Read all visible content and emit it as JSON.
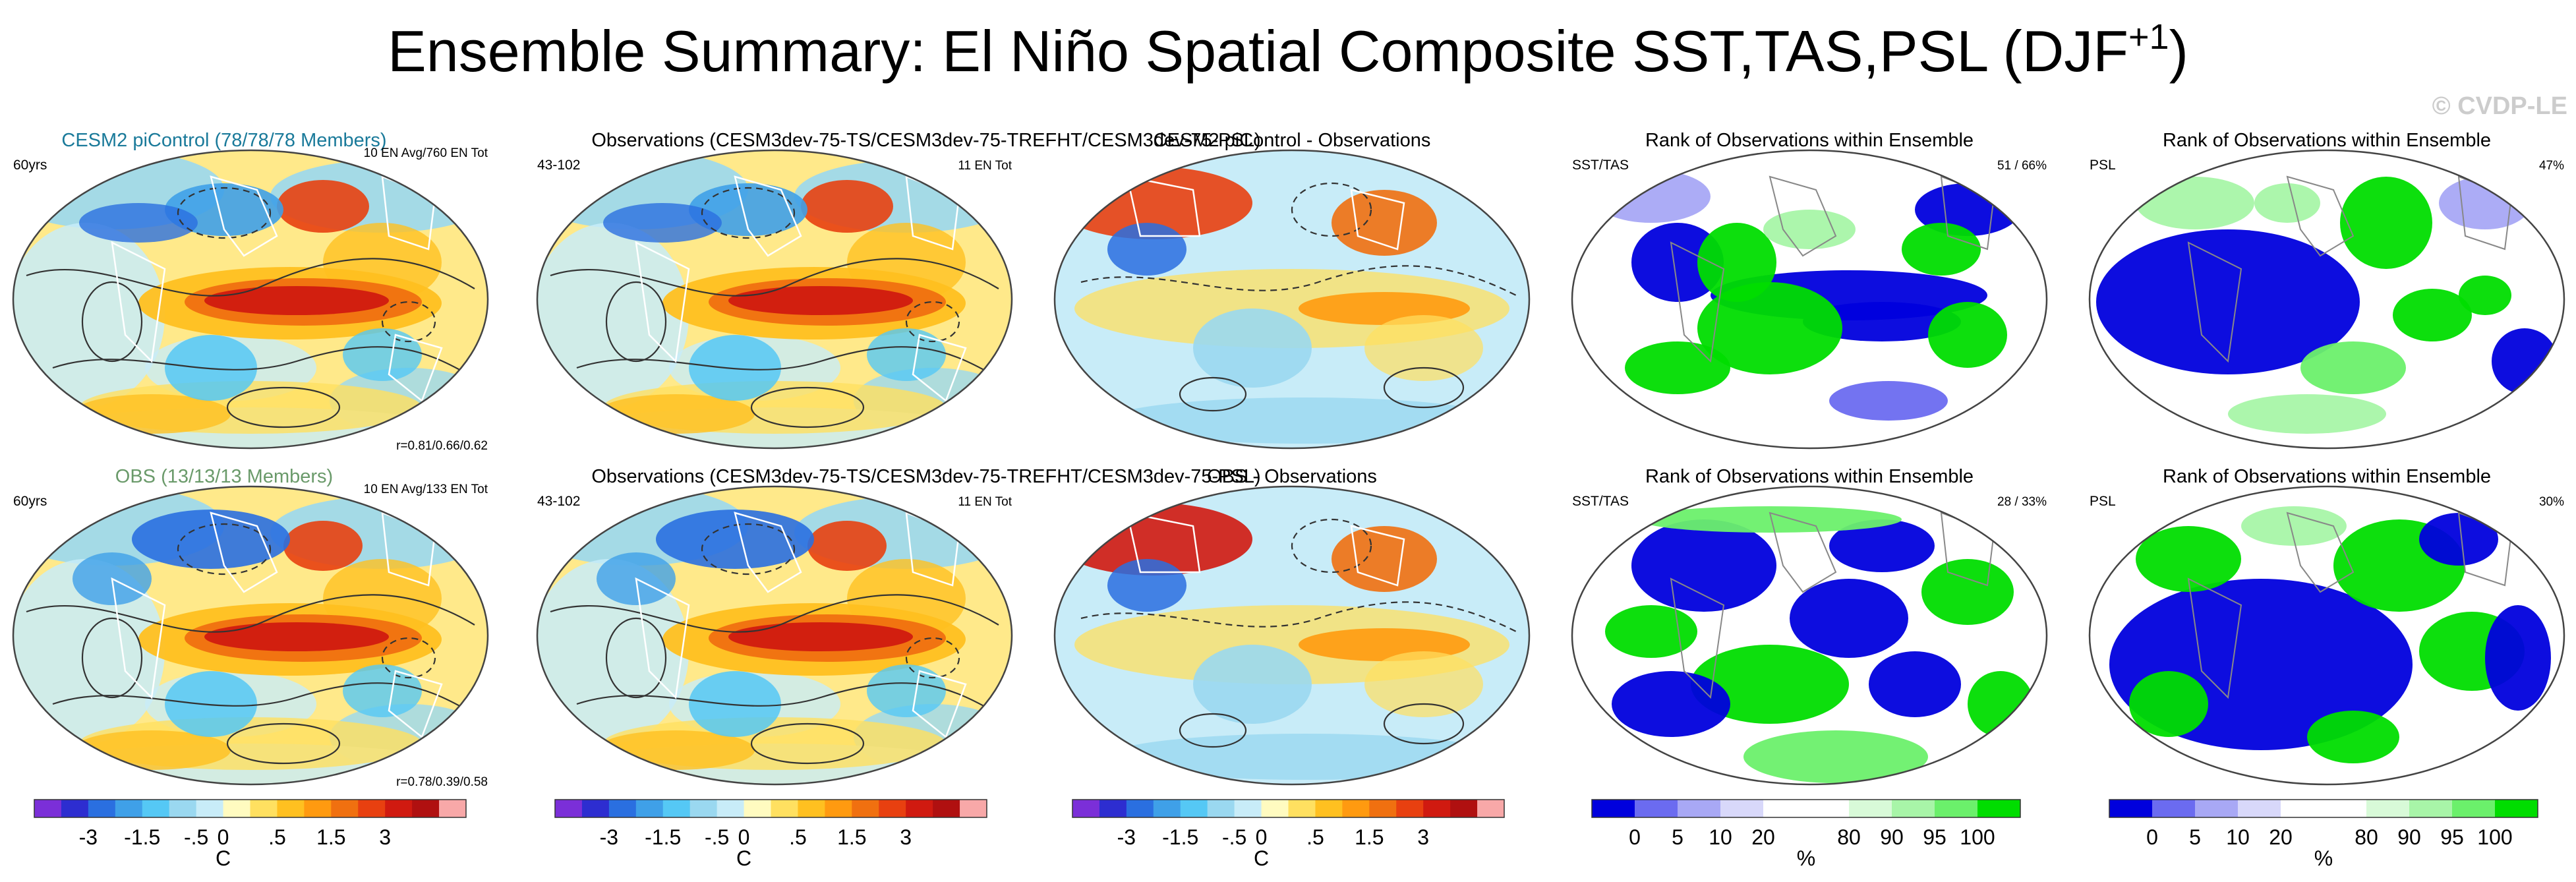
{
  "title": {
    "main": "Ensemble Summary: El Niño Spatial Composite SST,TAS,PSL (DJF",
    "superscript": "+1",
    "close": ")"
  },
  "watermark": "© CVDP-LE",
  "colors": {
    "ensemble_title": "#1a7a9a",
    "obs_title": "#6a9a6a",
    "watermark": "#cccccc",
    "temperature_scale": [
      "#7b2fd8",
      "#2d2dd0",
      "#2a6fe0",
      "#3fa0e8",
      "#55c8f5",
      "#9ad8f0",
      "#c8ecf8",
      "#fffbc0",
      "#ffe060",
      "#ffc020",
      "#ff9a10",
      "#f07010",
      "#e84010",
      "#d01a10",
      "#b01010",
      "#f8a8a8"
    ],
    "rank_scale": [
      "#0000dd",
      "#6b6bf0",
      "#a8a8f5",
      "#d8d8fa",
      "#ffffff",
      "#ffffff",
      "#d8fad8",
      "#a8f5a8",
      "#6bf06b",
      "#00dd00"
    ],
    "land_outline": "#888888",
    "contour": "#333333"
  },
  "rows": [
    {
      "panels": [
        {
          "title": "CESM2 piControl (78/78/78 Members)",
          "left": "60yrs",
          "right": "10 EN Avg/760 EN Tot",
          "bottom_right": "r=0.81/0.66/0.62",
          "type": "composite"
        },
        {
          "title": "Observations (CESM3dev-75-TS/CESM3dev-75-TREFHT/CESM3dev-75-PSL)",
          "left": "43-102",
          "right": "11 EN Tot",
          "bottom_right": "",
          "type": "composite"
        },
        {
          "title": "CESM2 piControl - Observations",
          "left": "",
          "right": "",
          "bottom_right": "",
          "type": "difference"
        },
        {
          "title": "Rank of Observations within Ensemble",
          "left": "SST/TAS",
          "right": "51 /  66%",
          "bottom_right": "",
          "type": "rank"
        },
        {
          "title": "Rank of Observations within Ensemble",
          "left": "PSL",
          "right": "47%",
          "bottom_right": "",
          "type": "rank"
        }
      ]
    },
    {
      "panels": [
        {
          "title": "OBS (13/13/13 Members)",
          "left": "60yrs",
          "right": "10 EN Avg/133 EN Tot",
          "bottom_right": "r=0.78/0.39/0.58",
          "type": "composite"
        },
        {
          "title": "Observations (CESM3dev-75-TS/CESM3dev-75-TREFHT/CESM3dev-75-PSL)",
          "left": "43-102",
          "right": "11 EN Tot",
          "bottom_right": "",
          "type": "composite"
        },
        {
          "title": "OBS - Observations",
          "left": "",
          "right": "",
          "bottom_right": "",
          "type": "difference"
        },
        {
          "title": "Rank of Observations within Ensemble",
          "left": "SST/TAS",
          "right": "28 /  33%",
          "bottom_right": "",
          "type": "rank"
        },
        {
          "title": "Rank of Observations within Ensemble",
          "left": "PSL",
          "right": "30%",
          "bottom_right": "",
          "type": "rank"
        }
      ]
    }
  ],
  "colorbars": [
    {
      "kind": "temperature",
      "ticks": [
        "-3",
        "-1.5",
        "-.5",
        "0",
        ".5",
        "1.5",
        "3"
      ],
      "unit": "C"
    },
    {
      "kind": "temperature",
      "ticks": [
        "-3",
        "-1.5",
        "-.5",
        "0",
        ".5",
        "1.5",
        "3"
      ],
      "unit": "C"
    },
    {
      "kind": "temperature",
      "ticks": [
        "-3",
        "-1.5",
        "-.5",
        "0",
        ".5",
        "1.5",
        "3"
      ],
      "unit": "C"
    },
    {
      "kind": "rank",
      "ticks": [
        "0",
        "5",
        "10",
        "20",
        "80",
        "90",
        "95",
        "100"
      ],
      "unit": "%"
    },
    {
      "kind": "rank",
      "ticks": [
        "0",
        "5",
        "10",
        "20",
        "80",
        "90",
        "95",
        "100"
      ],
      "unit": "%"
    }
  ],
  "chart_data": {
    "type": "heatmap",
    "title": "Ensemble Summary: El Niño Spatial Composite SST,TAS,PSL (DJF+1)",
    "grid": "5 columns x 2 rows of global map panels",
    "temperature_levels_C": [
      -4,
      -3,
      -2,
      -1.5,
      -1,
      -0.5,
      -0.25,
      0,
      0.25,
      0.5,
      1,
      1.5,
      2,
      3,
      4
    ],
    "rank_levels_pct": [
      0,
      5,
      10,
      20,
      80,
      90,
      95,
      100
    ],
    "pattern_correlations": [
      {
        "panel": "CESM2 piControl (78/78/78 Members)",
        "values": [
          0.81,
          0.66,
          0.62
        ]
      },
      {
        "panel": "OBS (13/13/13 Members)",
        "values": [
          0.78,
          0.39,
          0.58
        ]
      }
    ],
    "rank_summaries_pct": [
      {
        "panel": "row1 SST/TAS",
        "values": [
          51,
          66
        ]
      },
      {
        "panel": "row1 PSL",
        "values": [
          47
        ]
      },
      {
        "panel": "row2 SST/TAS",
        "values": [
          28,
          33
        ]
      },
      {
        "panel": "row2 PSL",
        "values": [
          30
        ]
      }
    ],
    "el_nino_counts": [
      {
        "panel": "CESM2 piControl",
        "avg": 10,
        "total": 760
      },
      {
        "panel": "OBS",
        "avg": 10,
        "total": 133
      },
      {
        "panel": "Observations",
        "total": 11
      }
    ]
  }
}
